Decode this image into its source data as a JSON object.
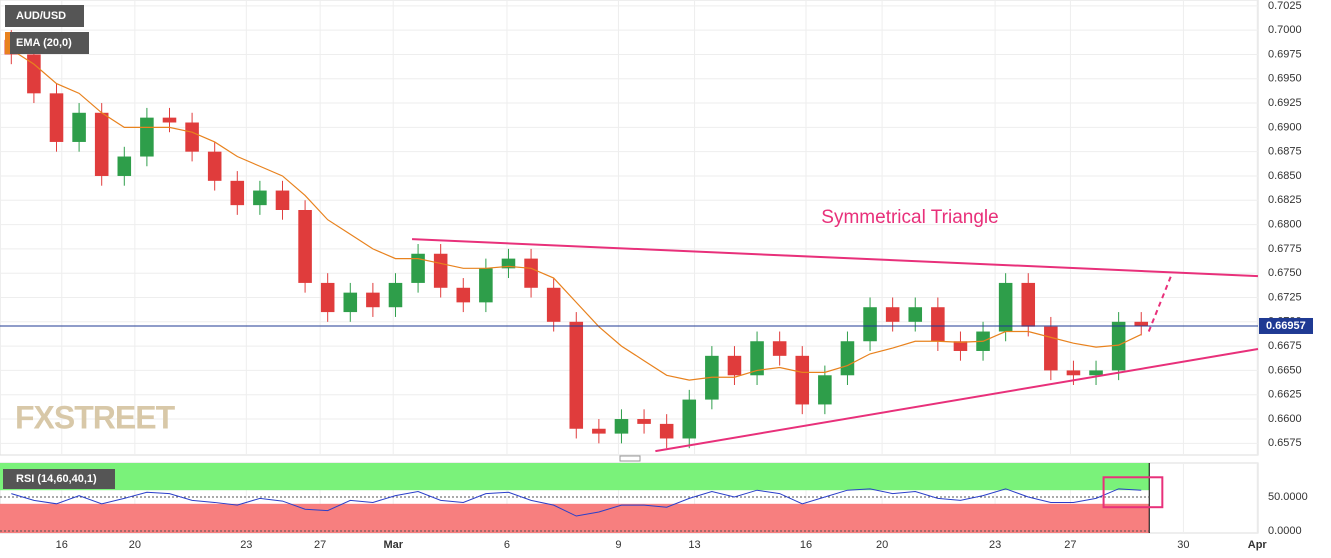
{
  "chart_data": {
    "type": "candlestick",
    "symbol": "AUD/USD",
    "watermark": "FXSTREET",
    "annotation": "Symmetrical Triangle",
    "xlim": [
      0,
      167
    ],
    "xticks": [
      {
        "value": 8.2,
        "label": "16"
      },
      {
        "value": 17.9,
        "label": "20"
      },
      {
        "value": 32.7,
        "label": "23"
      },
      {
        "value": 42.5,
        "label": "27"
      },
      {
        "value": 52.2,
        "label": "Mar"
      },
      {
        "value": 67.3,
        "label": "6"
      },
      {
        "value": 82.1,
        "label": "9"
      },
      {
        "value": 92.2,
        "label": "13"
      },
      {
        "value": 107,
        "label": "16"
      },
      {
        "value": 117.1,
        "label": "20"
      },
      {
        "value": 132.1,
        "label": "23"
      },
      {
        "value": 142.1,
        "label": "27"
      },
      {
        "value": 157.1,
        "label": "30"
      },
      {
        "value": 166.9,
        "label": "Apr"
      }
    ],
    "ylim": [
      0.6563,
      0.7031
    ],
    "yticks": [
      {
        "value": 0.6575,
        "label": "0.6575"
      },
      {
        "value": 0.66,
        "label": "0.6600"
      },
      {
        "value": 0.6625,
        "label": "0.6625"
      },
      {
        "value": 0.665,
        "label": "0.6650"
      },
      {
        "value": 0.6675,
        "label": "0.6675"
      },
      {
        "value": 0.67,
        "label": "0.6700"
      },
      {
        "value": 0.6725,
        "label": "0.6725"
      },
      {
        "value": 0.675,
        "label": "0.6750"
      },
      {
        "value": 0.6775,
        "label": "0.6775"
      },
      {
        "value": 0.68,
        "label": "0.6800"
      },
      {
        "value": 0.6825,
        "label": "0.6825"
      },
      {
        "value": 0.685,
        "label": "0.6850"
      },
      {
        "value": 0.6875,
        "label": "0.6875"
      },
      {
        "value": 0.69,
        "label": "0.6900"
      },
      {
        "value": 0.6925,
        "label": "0.6925"
      },
      {
        "value": 0.695,
        "label": "0.6950"
      },
      {
        "value": 0.6975,
        "label": "0.6975"
      },
      {
        "value": 0.7,
        "label": "0.7000"
      },
      {
        "value": 0.7025,
        "label": "0.7025"
      }
    ],
    "grid": true,
    "up_color": "#2e9e4a",
    "down_color": "#e03c3c",
    "x": [
      1.5,
      4.5,
      7.5,
      10.5,
      13.5,
      16.5,
      19.5,
      22.5,
      25.5,
      28.5,
      31.5,
      34.5,
      37.5,
      40.5,
      43.5,
      46.5,
      49.5,
      52.5,
      55.5,
      58.5,
      61.5,
      64.5,
      67.5,
      70.5,
      73.5,
      76.5,
      79.5,
      82.5,
      85.5,
      88.5,
      91.5,
      94.5,
      97.5,
      100.5,
      103.5,
      106.5,
      109.5,
      112.5,
      115.5,
      118.5,
      121.5,
      124.5,
      127.5,
      130.5,
      133.5,
      136.5,
      139.5,
      142.5,
      145.5,
      148.5,
      151.5
    ],
    "open": [
      0.699,
      0.6975,
      0.6935,
      0.6885,
      0.6915,
      0.685,
      0.687,
      0.691,
      0.6905,
      0.6875,
      0.6845,
      0.682,
      0.6835,
      0.6815,
      0.674,
      0.671,
      0.673,
      0.6715,
      0.674,
      0.677,
      0.6735,
      0.672,
      0.6755,
      0.6765,
      0.6735,
      0.67,
      0.659,
      0.6585,
      0.66,
      0.6595,
      0.658,
      0.662,
      0.6665,
      0.6645,
      0.668,
      0.6665,
      0.6615,
      0.6645,
      0.668,
      0.6715,
      0.67,
      0.6715,
      0.668,
      0.667,
      0.669,
      0.674,
      0.6695,
      0.665,
      0.6645,
      0.665,
      0.67
    ],
    "high": [
      0.7,
      0.6985,
      0.6945,
      0.6925,
      0.6925,
      0.688,
      0.692,
      0.692,
      0.6915,
      0.6885,
      0.6855,
      0.6845,
      0.6845,
      0.6825,
      0.675,
      0.674,
      0.674,
      0.675,
      0.678,
      0.678,
      0.6745,
      0.6765,
      0.6775,
      0.6775,
      0.6745,
      0.671,
      0.66,
      0.661,
      0.661,
      0.6605,
      0.663,
      0.6675,
      0.6675,
      0.669,
      0.669,
      0.6675,
      0.6655,
      0.669,
      0.6725,
      0.6725,
      0.6725,
      0.6725,
      0.669,
      0.67,
      0.675,
      0.675,
      0.6705,
      0.666,
      0.666,
      0.671,
      0.671
    ],
    "low": [
      0.6965,
      0.6925,
      0.6875,
      0.6875,
      0.684,
      0.684,
      0.686,
      0.6895,
      0.6865,
      0.6835,
      0.681,
      0.681,
      0.6805,
      0.673,
      0.67,
      0.67,
      0.6705,
      0.6705,
      0.673,
      0.6725,
      0.671,
      0.671,
      0.6745,
      0.6725,
      0.669,
      0.658,
      0.6575,
      0.6575,
      0.6585,
      0.657,
      0.657,
      0.661,
      0.6635,
      0.6635,
      0.6655,
      0.6605,
      0.6605,
      0.6635,
      0.667,
      0.669,
      0.669,
      0.667,
      0.666,
      0.666,
      0.668,
      0.6685,
      0.664,
      0.6635,
      0.6635,
      0.664,
      0.6686
    ],
    "close": [
      0.6975,
      0.6935,
      0.6885,
      0.6915,
      0.685,
      0.687,
      0.691,
      0.6905,
      0.6875,
      0.6845,
      0.682,
      0.6835,
      0.6815,
      0.674,
      0.671,
      0.673,
      0.6715,
      0.674,
      0.677,
      0.6735,
      0.672,
      0.6755,
      0.6765,
      0.6735,
      0.67,
      0.659,
      0.6585,
      0.66,
      0.6595,
      0.658,
      0.662,
      0.6665,
      0.6645,
      0.668,
      0.6665,
      0.6615,
      0.6645,
      0.668,
      0.6715,
      0.67,
      0.6715,
      0.668,
      0.667,
      0.669,
      0.674,
      0.6695,
      0.665,
      0.6645,
      0.665,
      0.67,
      0.6696
    ],
    "ema": {
      "name": "EMA (20,0)",
      "color": "#e8821e",
      "values": [
        0.698,
        0.6965,
        0.6945,
        0.6935,
        0.6915,
        0.69,
        0.69,
        0.69,
        0.6895,
        0.6885,
        0.687,
        0.686,
        0.685,
        0.683,
        0.6805,
        0.679,
        0.6775,
        0.6765,
        0.6765,
        0.676,
        0.6755,
        0.6755,
        0.6757,
        0.6755,
        0.6745,
        0.672,
        0.6695,
        0.6675,
        0.666,
        0.6645,
        0.664,
        0.6643,
        0.6643,
        0.665,
        0.6653,
        0.6648,
        0.6648,
        0.6655,
        0.6667,
        0.6673,
        0.668,
        0.668,
        0.6679,
        0.668,
        0.669,
        0.669,
        0.6684,
        0.6678,
        0.6674,
        0.6676,
        0.6687
      ]
    },
    "current_price": 0.66957,
    "current_price_color": "#1f3a93",
    "trendline_color": "#e8307a",
    "trendlines": [
      {
        "x": [
          54.7,
          167
        ],
        "y": [
          0.6785,
          0.6747
        ]
      },
      {
        "x": [
          87,
          167
        ],
        "y": [
          0.6567,
          0.6672
        ]
      }
    ],
    "projection": {
      "x": [
        152.5,
        155.6
      ],
      "y": [
        0.669,
        0.675
      ]
    },
    "rsi": {
      "name": "RSI (14,60,40,1)",
      "color": "#2a3fc9",
      "upper_band": 60,
      "lower_band": 40,
      "upper_color": "#7af27a",
      "lower_color": "#f77f7f",
      "ylim": [
        0,
        100
      ],
      "yticks": [
        {
          "value": 50,
          "label": "50.0000"
        },
        {
          "value": 0,
          "label": "0.0000"
        }
      ],
      "values": [
        55,
        45,
        40,
        52,
        40,
        48,
        57,
        55,
        45,
        42,
        38,
        48,
        44,
        32,
        30,
        45,
        42,
        52,
        58,
        45,
        42,
        55,
        57,
        45,
        38,
        22,
        28,
        38,
        38,
        35,
        48,
        58,
        50,
        60,
        55,
        40,
        50,
        60,
        62,
        55,
        58,
        48,
        45,
        52,
        62,
        50,
        42,
        42,
        48,
        62,
        60
      ],
      "highlight_box": {
        "x": [
          146.5,
          154.3
        ],
        "y": [
          35,
          79
        ]
      }
    }
  }
}
